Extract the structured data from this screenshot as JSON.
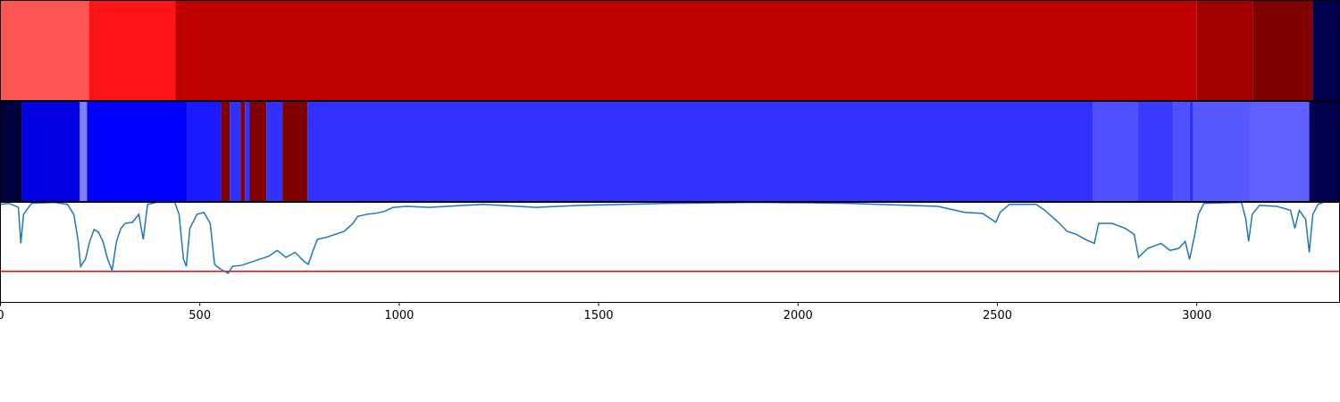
{
  "chart_data": [
    {
      "type": "strip",
      "xlim": [
        0,
        3358
      ],
      "edges": [
        0,
        222,
        439,
        3000,
        3141,
        3291,
        3358
      ],
      "colors": [
        "#ff5555",
        "#ff1515",
        "#c00000",
        "#a00000",
        "#800000",
        "#000050"
      ]
    },
    {
      "type": "strip",
      "xlim": [
        0,
        3358
      ],
      "edges": [
        0,
        54,
        199,
        217,
        468,
        553,
        575,
        602,
        613,
        625,
        667,
        707,
        770,
        2740,
        2852,
        2941,
        2982,
        2991,
        3134,
        3282,
        3358
      ],
      "colors": [
        "#000040",
        "#0000e0",
        "#8080ff",
        "#0000ff",
        "#1a1aff",
        "#800000",
        "#3030ff",
        "#800000",
        "#3030ff",
        "#800000",
        "#3030ff",
        "#800000",
        "#3030ff",
        "#5050ff",
        "#3a3aff",
        "#5050ff",
        "#3030ff",
        "#5858ff",
        "#6060ff",
        "#000050"
      ]
    },
    {
      "type": "line",
      "xlim": [
        0,
        3358
      ],
      "ylim": [
        0,
        1
      ],
      "xticks": [
        0,
        500,
        1000,
        1500,
        2000,
        2500,
        3000
      ],
      "color": "#1f77b4",
      "hline": 0.31,
      "hline_color": "#ff0000",
      "x": [
        0,
        22,
        45,
        51,
        58,
        78,
        134,
        168,
        184,
        195,
        201,
        213,
        224,
        235,
        246,
        257,
        269,
        280,
        291,
        302,
        313,
        331,
        347,
        358,
        369,
        392,
        437,
        448,
        459,
        466,
        475,
        493,
        510,
        526,
        537,
        549,
        571,
        582,
        604,
        627,
        649,
        672,
        694,
        716,
        739,
        761,
        772,
        784,
        795,
        817,
        840,
        862,
        884,
        896,
        918,
        940,
        963,
        985,
        1019,
        1075,
        1119,
        1209,
        1343,
        1455,
        1679,
        1903,
        2127,
        2351,
        2418,
        2463,
        2485,
        2496,
        2507,
        2530,
        2597,
        2619,
        2653,
        2675,
        2698,
        2720,
        2743,
        2754,
        2787,
        2821,
        2843,
        2854,
        2877,
        2910,
        2933,
        2955,
        2971,
        2982,
        2996,
        3004,
        3018,
        3112,
        3123,
        3130,
        3139,
        3157,
        3201,
        3235,
        3246,
        3257,
        3273,
        3282,
        3291,
        3304,
        3318
      ],
      "values": [
        0.98,
        0.99,
        0.95,
        0.59,
        0.88,
        0.99,
        1.0,
        0.98,
        0.88,
        0.61,
        0.36,
        0.43,
        0.61,
        0.73,
        0.7,
        0.61,
        0.43,
        0.32,
        0.61,
        0.74,
        0.79,
        0.8,
        0.88,
        0.63,
        0.98,
        1.0,
        1.0,
        0.88,
        0.43,
        0.36,
        0.74,
        0.88,
        0.9,
        0.79,
        0.38,
        0.34,
        0.29,
        0.36,
        0.37,
        0.4,
        0.43,
        0.46,
        0.52,
        0.45,
        0.5,
        0.41,
        0.38,
        0.52,
        0.63,
        0.65,
        0.68,
        0.71,
        0.79,
        0.86,
        0.88,
        0.89,
        0.91,
        0.95,
        0.96,
        0.95,
        0.96,
        0.98,
        0.95,
        0.97,
        0.99,
        1.0,
        0.99,
        0.96,
        0.9,
        0.89,
        0.83,
        0.8,
        0.9,
        0.98,
        0.98,
        0.92,
        0.8,
        0.71,
        0.68,
        0.63,
        0.59,
        0.79,
        0.79,
        0.74,
        0.68,
        0.45,
        0.54,
        0.59,
        0.52,
        0.54,
        0.61,
        0.43,
        0.7,
        0.88,
        0.99,
        1.0,
        0.83,
        0.61,
        0.88,
        0.97,
        0.96,
        0.92,
        0.74,
        0.92,
        0.83,
        0.5,
        0.88,
        0.98,
        1.0
      ]
    }
  ]
}
